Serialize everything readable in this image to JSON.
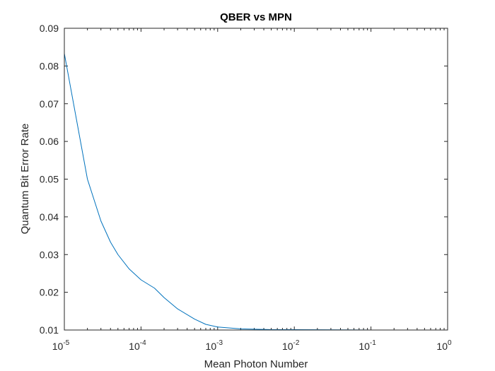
{
  "chart_data": {
    "type": "line",
    "title": "QBER vs MPN",
    "xlabel": "Mean Photon Number",
    "ylabel": "Quantum Bit Error Rate",
    "xscale": "log",
    "xlim": [
      1e-05,
      1
    ],
    "ylim": [
      0.01,
      0.09
    ],
    "x_ticks": [
      {
        "value": 1e-05,
        "base": "10",
        "exp": "-5"
      },
      {
        "value": 0.0001,
        "base": "10",
        "exp": "-4"
      },
      {
        "value": 0.001,
        "base": "10",
        "exp": "-3"
      },
      {
        "value": 0.01,
        "base": "10",
        "exp": "-2"
      },
      {
        "value": 0.1,
        "base": "10",
        "exp": "-1"
      },
      {
        "value": 1,
        "base": "10",
        "exp": "0"
      }
    ],
    "y_ticks": [
      "0.01",
      "0.02",
      "0.03",
      "0.04",
      "0.05",
      "0.06",
      "0.07",
      "0.08",
      "0.09"
    ],
    "grid": false,
    "box": true,
    "series": [
      {
        "color": "#0072BD",
        "x": [
          1e-05,
          2e-05,
          3e-05,
          4e-05,
          5e-05,
          7e-05,
          0.0001,
          0.00015,
          0.0002,
          0.0003,
          0.0005,
          0.0007,
          0.001,
          0.002,
          0.005,
          0.01,
          0.1,
          1
        ],
        "y": [
          0.0833,
          0.05,
          0.0389,
          0.0333,
          0.03,
          0.0262,
          0.0233,
          0.0211,
          0.0186,
          0.0156,
          0.0129,
          0.0115,
          0.0108,
          0.0103,
          0.0101,
          0.0101,
          0.01,
          0.01
        ]
      }
    ]
  }
}
